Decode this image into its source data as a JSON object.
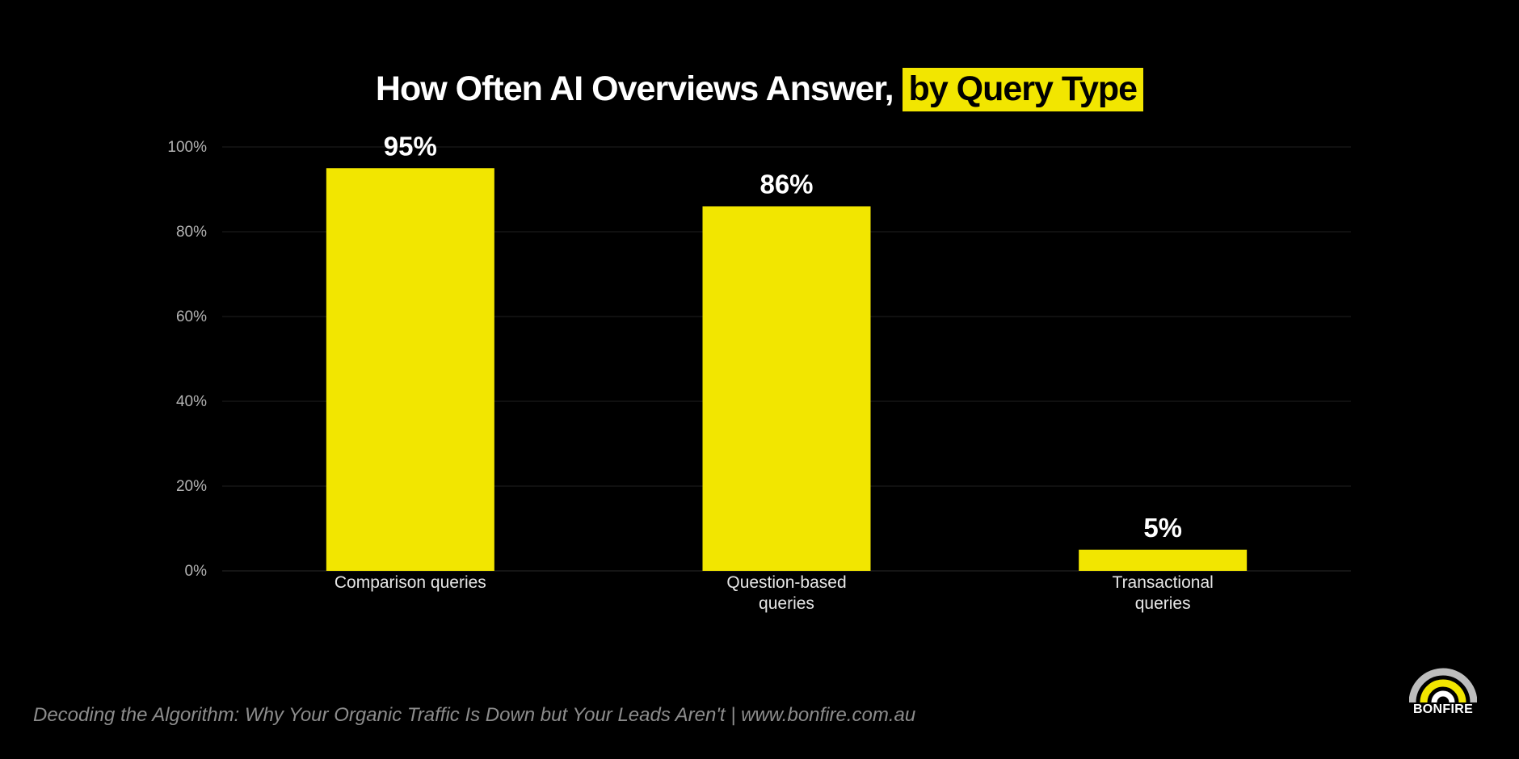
{
  "title": {
    "main": "How Often AI Overviews Answer,",
    "highlight": "by Query Type"
  },
  "chart_data": {
    "type": "bar",
    "categories": [
      [
        "Comparison queries"
      ],
      [
        "Question-based",
        "queries"
      ],
      [
        "Transactional",
        "queries"
      ]
    ],
    "values": [
      95,
      86,
      5
    ],
    "data_labels": [
      "95%",
      "86%",
      "5%"
    ],
    "ylim": [
      0,
      100
    ],
    "yticks": [
      0,
      20,
      40,
      60,
      80,
      100
    ],
    "ytick_labels": [
      "0%",
      "20%",
      "40%",
      "60%",
      "80%",
      "100%"
    ],
    "grid": true,
    "bar_color": "#f2e600",
    "grid_color": "#1f1f1f"
  },
  "footer": "Decoding the Algorithm: Why Your Organic Traffic Is Down but Your Leads Aren't | www.bonfire.com.au",
  "logo": {
    "text": "BONFIRE",
    "icon": "bonfire-logo-icon"
  },
  "colors": {
    "background": "#000000",
    "accent": "#f2e600",
    "text": "#ffffff",
    "muted": "#8c8c8c"
  }
}
